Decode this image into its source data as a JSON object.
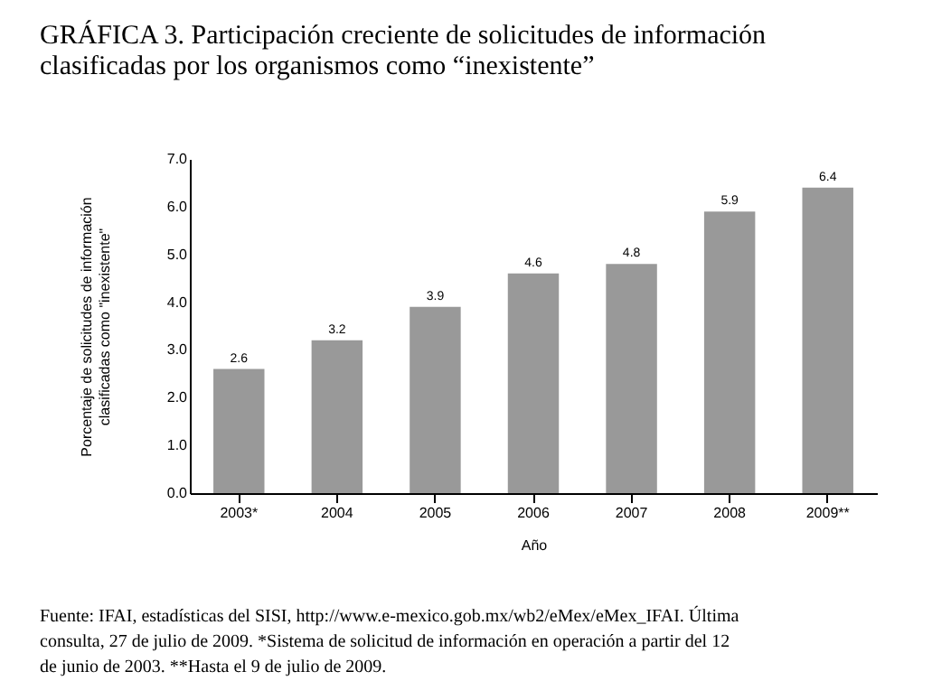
{
  "chart_data": {
    "type": "bar",
    "title": "GRÁFICA 3. Participación creciente de solicitudes de información clasificadas por los organismos como “inexistente”",
    "xlabel": "Año",
    "ylabel": "Porcentaje de solicitudes de información clasificadas como \"inexistente\"",
    "categories": [
      "2003*",
      "2004",
      "2005",
      "2006",
      "2007",
      "2008",
      "2009**"
    ],
    "values": [
      2.6,
      3.2,
      3.9,
      4.6,
      4.8,
      5.9,
      6.4
    ],
    "color": "#999999",
    "ylim": [
      0,
      7
    ],
    "yticks": [
      {
        "value": 0,
        "label": "0.0"
      },
      {
        "value": 1,
        "label": "1.0"
      },
      {
        "value": 2,
        "label": "2.0"
      },
      {
        "value": 3,
        "label": "3.0"
      },
      {
        "value": 4,
        "label": "4.0"
      },
      {
        "value": 5,
        "label": "5.0"
      },
      {
        "value": 6,
        "label": "6.0"
      },
      {
        "value": 7,
        "label": "7.0"
      }
    ],
    "grid": false,
    "data_labels": true,
    "annotations": [
      "Fuente: IFAI, estadísticas del SISI, http://www.e-mexico.gob.mx/wb2/eMex/eMex_IFAI. Última consulta, 27 de julio de 2009. *Sistema de solicitud de información en operación a partir del 12 de junio de 2003. **Hasta el 9 de julio de 2009."
    ]
  }
}
